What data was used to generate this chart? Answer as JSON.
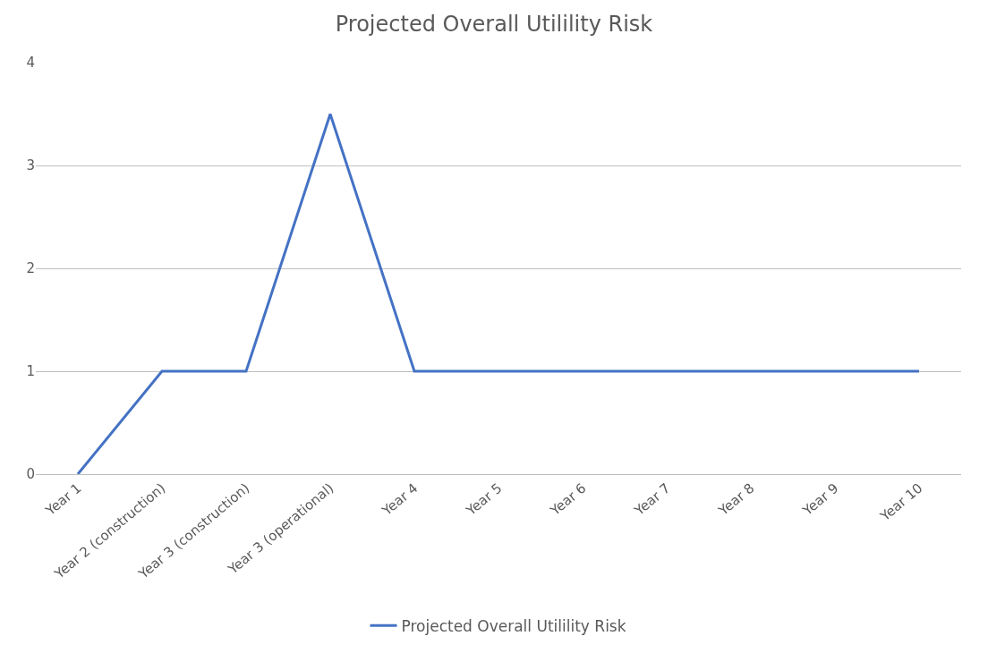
{
  "chart_data": {
    "type": "line",
    "title": "Projected Overall Utilility Risk",
    "categories": [
      "Year 1",
      "Year 2 (construction)",
      "Year 3 (construction)",
      "Year 3 (operational)",
      "Year 4",
      "Year 5",
      "Year 6",
      "Year 7",
      "Year 8",
      "Year 9",
      "Year 10"
    ],
    "series": [
      {
        "name": "Projected Overall Utilility Risk",
        "color": "#4472c4",
        "values": [
          0,
          1,
          1,
          3.5,
          1,
          1,
          1,
          1,
          1,
          1,
          1
        ]
      }
    ],
    "ylim": [
      0,
      4
    ],
    "yticks": [
      0,
      1,
      2,
      3,
      4
    ],
    "grid": "y",
    "legend": "bottom",
    "marker": "none",
    "line_style": "solid"
  }
}
